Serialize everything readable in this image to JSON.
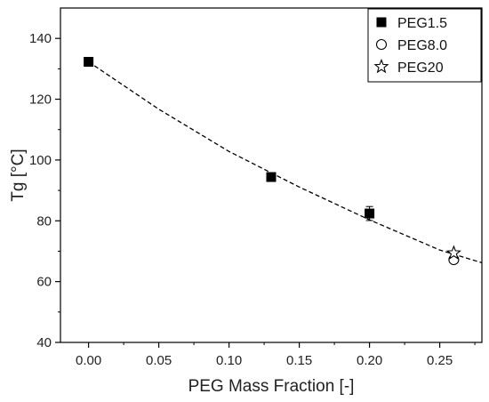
{
  "chart_data": {
    "type": "scatter",
    "xlabel": "PEG Mass Fraction [-]",
    "ylabel": "Tg [°C]",
    "xlim": [
      -0.02,
      0.28
    ],
    "ylim": [
      40,
      150
    ],
    "x_ticks": [
      "0.00",
      "0.05",
      "0.10",
      "0.15",
      "0.20",
      "0.25"
    ],
    "y_ticks": [
      "40",
      "60",
      "80",
      "100",
      "120",
      "140"
    ],
    "legend_position": "top-right",
    "series": [
      {
        "name": "PEG1.5",
        "marker": "filled-square",
        "points": [
          {
            "x": 0.0,
            "y": 132.3
          },
          {
            "x": 0.13,
            "y": 94.4
          },
          {
            "x": 0.2,
            "y": 82.4,
            "err": 2.3
          }
        ]
      },
      {
        "name": "PEG8.0",
        "marker": "open-circle",
        "points": [
          {
            "x": 0.26,
            "y": 67.2
          }
        ]
      },
      {
        "name": "PEG20",
        "marker": "open-star",
        "points": [
          {
            "x": 0.26,
            "y": 69.4
          }
        ]
      }
    ],
    "fit": {
      "style": "dashed",
      "color": "#000000",
      "x": [
        0.0,
        0.05,
        0.1,
        0.15,
        0.2,
        0.25,
        0.28
      ],
      "y": [
        132.3,
        116.7,
        102.8,
        91.1,
        80.3,
        70.4,
        66.2
      ]
    }
  }
}
